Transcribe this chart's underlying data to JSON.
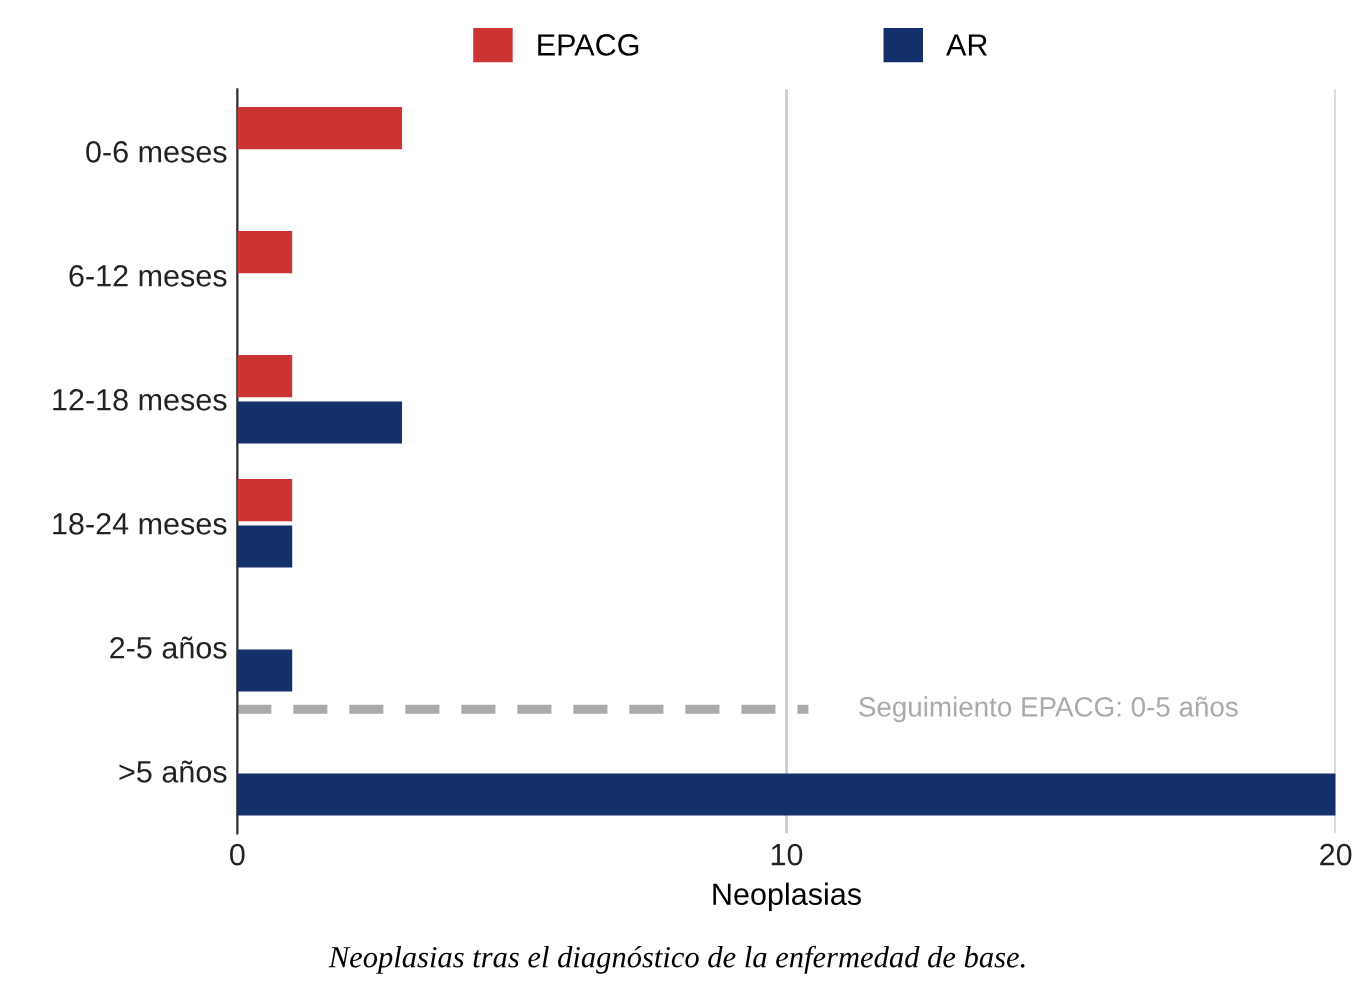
{
  "chart_data": {
    "type": "bar",
    "orientation": "horizontal",
    "xlabel": "Neoplasias",
    "categories": [
      "0-6 meses",
      "6-12 meses",
      "12-18 meses",
      "18-24 meses",
      "2-5 años",
      ">5 años"
    ],
    "series": [
      {
        "name": "EPACG",
        "color": "#cc3333",
        "values": [
          3,
          1,
          1,
          1,
          null,
          null
        ]
      },
      {
        "name": "AR",
        "color": "#14306b",
        "values": [
          null,
          null,
          3,
          1,
          1,
          20
        ]
      }
    ],
    "xlim": [
      0,
      20
    ],
    "xticks": [
      0,
      10,
      20
    ],
    "grid": "x",
    "legend": "top",
    "annotations": [
      "Seguimiento EPACG: 0-5 años",
      "Neoplasias tras el diagnóstico de la enfermedad de base."
    ]
  }
}
